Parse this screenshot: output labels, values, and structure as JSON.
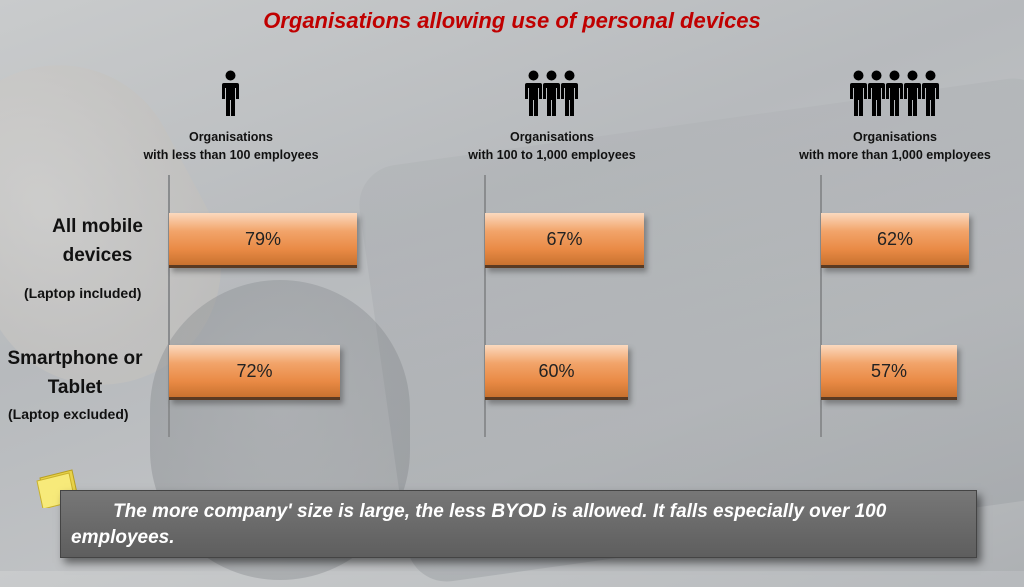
{
  "title": "Organisations allowing use of personal devices",
  "groups": [
    {
      "line1": "Organisations",
      "line2": "with less than 100 employees",
      "icon": "person-icon",
      "icon_count": 1
    },
    {
      "line1": "Organisations",
      "line2": "with 100 to 1,000 employees",
      "icon": "person-icon",
      "icon_count": 3
    },
    {
      "line1": "Organisations",
      "line2": "with more than 1,000 employees",
      "icon": "person-icon",
      "icon_count": 5
    }
  ],
  "rows": [
    {
      "title_line1": "All mobile",
      "title_line2": "devices",
      "subtitle": "(Laptop included)"
    },
    {
      "title_line1": "Smartphone or",
      "title_line2": "Tablet",
      "subtitle": "(Laptop excluded)"
    }
  ],
  "chart_data": {
    "type": "bar",
    "orientation": "horizontal",
    "categories": [
      "All mobile devices (Laptop included)",
      "Smartphone or Tablet (Laptop excluded)"
    ],
    "series": [
      {
        "name": "Organisations with less than 100 employees",
        "values": [
          79,
          72
        ]
      },
      {
        "name": "Organisations with 100 to 1,000 employees",
        "values": [
          67,
          60
        ]
      },
      {
        "name": "Organisations with more than 1,000 employees",
        "values": [
          62,
          57
        ]
      }
    ],
    "data_labels": [
      [
        "79%",
        "72%"
      ],
      [
        "67%",
        "60%"
      ],
      [
        "62%",
        "57%"
      ]
    ],
    "unit": "%",
    "xlim": [
      0,
      100
    ],
    "grid": false,
    "title": "Organisations allowing use of personal devices"
  },
  "note": {
    "text": "The more company' size is large, the less BYOD is allowed. It falls especially over 100 employees.",
    "icon": "sticky-note-icon"
  },
  "colors": {
    "title": "#c00000",
    "bar": "#ee9655",
    "note_bg": "#666666"
  }
}
